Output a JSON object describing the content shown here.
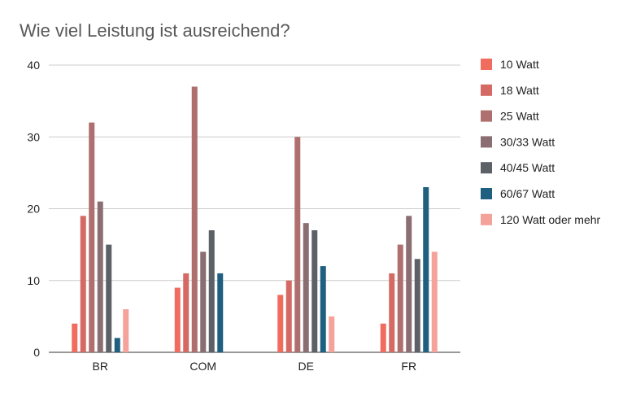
{
  "chart_data": {
    "type": "bar",
    "title": "Wie viel Leistung ist ausreichend?",
    "xlabel": "",
    "ylabel": "",
    "ylim": [
      0,
      40
    ],
    "yticks": [
      0,
      10,
      20,
      30,
      40
    ],
    "grid": true,
    "legend_position": "right",
    "categories": [
      "BR",
      "COM",
      "DE",
      "FR"
    ],
    "series": [
      {
        "name": "10 Watt",
        "color": "#EF6C5F",
        "values": [
          4,
          9,
          8,
          4
        ]
      },
      {
        "name": "18 Watt",
        "color": "#D46A63",
        "values": [
          19,
          11,
          10,
          11
        ]
      },
      {
        "name": "25 Watt",
        "color": "#AE6F6E",
        "values": [
          32,
          37,
          30,
          15
        ]
      },
      {
        "name": "30/33 Watt",
        "color": "#8A6E72",
        "values": [
          21,
          14,
          18,
          19
        ]
      },
      {
        "name": "40/45 Watt",
        "color": "#5C6167",
        "values": [
          15,
          17,
          17,
          13
        ]
      },
      {
        "name": "60/67 Watt",
        "color": "#1F5F80",
        "values": [
          2,
          11,
          12,
          23
        ]
      },
      {
        "name": "120 Watt oder mehr",
        "color": "#F4A29A",
        "values": [
          6,
          0,
          5,
          14
        ]
      }
    ]
  }
}
